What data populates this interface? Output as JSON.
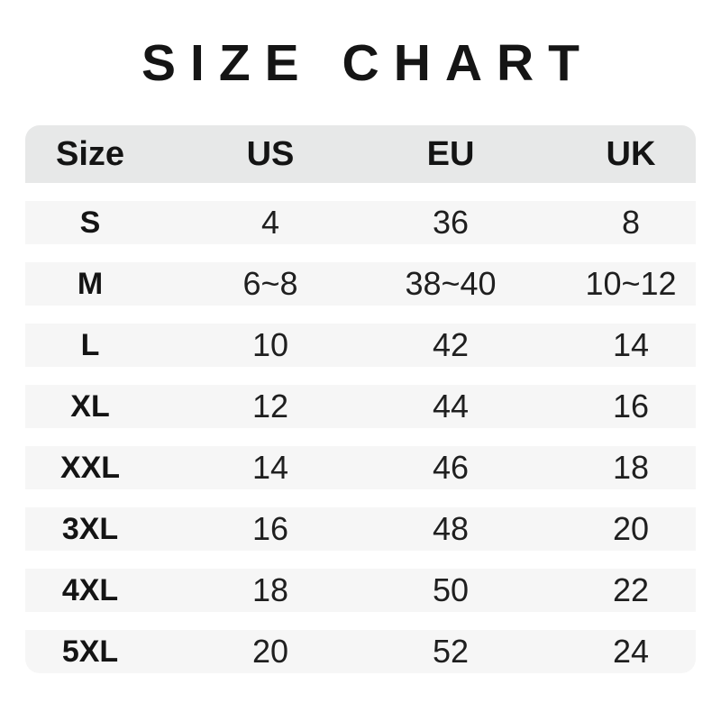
{
  "title": "SIZE CHART",
  "colors": {
    "page_bg": "#ffffff",
    "header_row_bg": "#e7e8e8",
    "data_row_bg": "#f6f6f6",
    "text": "#1a1a1a"
  },
  "chart_data": {
    "type": "table",
    "title": "SIZE CHART",
    "columns": [
      "Size",
      "US",
      "EU",
      "UK"
    ],
    "rows": [
      [
        "S",
        "4",
        "36",
        "8"
      ],
      [
        "M",
        "6~8",
        "38~40",
        "10~12"
      ],
      [
        "L",
        "10",
        "42",
        "14"
      ],
      [
        "XL",
        "12",
        "44",
        "16"
      ],
      [
        "XXL",
        "14",
        "46",
        "18"
      ],
      [
        "3XL",
        "16",
        "48",
        "20"
      ],
      [
        "4XL",
        "18",
        "50",
        "22"
      ],
      [
        "5XL",
        "20",
        "52",
        "24"
      ]
    ]
  }
}
